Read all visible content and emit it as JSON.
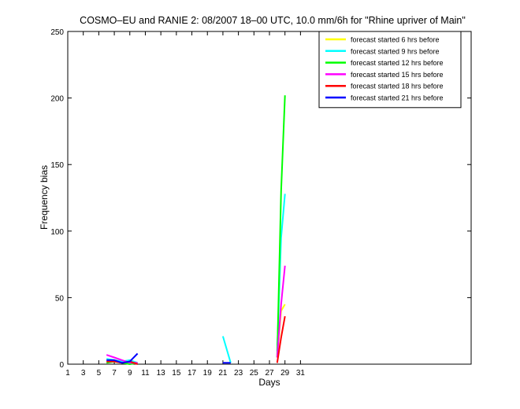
{
  "chart_data": {
    "type": "line",
    "title": "COSMO–EU and RANIE 2: 08/2007 18–00 UTC, 10.0 mm/6h for \"Rhine upriver of Main\"",
    "xlabel": "Days",
    "ylabel": "Frequency bias",
    "xlim": [
      1,
      53
    ],
    "ylim": [
      0,
      250
    ],
    "xticks": [
      1,
      3,
      5,
      7,
      9,
      11,
      13,
      15,
      17,
      19,
      21,
      23,
      25,
      27,
      29,
      31
    ],
    "yticks": [
      0,
      50,
      100,
      150,
      200,
      250
    ],
    "grid": false,
    "legend_position": "top-right",
    "series": [
      {
        "name": "forecast started 6 hrs before",
        "color": "#ffff00",
        "points": [
          [
            6,
            2
          ],
          [
            7,
            3
          ],
          [
            8,
            2
          ],
          [
            9,
            1
          ],
          [
            10,
            1
          ],
          [
            28,
            5
          ],
          [
            28.5,
            40
          ],
          [
            29,
            45
          ]
        ]
      },
      {
        "name": "forecast started 9 hrs before",
        "color": "#00ffff",
        "points": [
          [
            6,
            4
          ],
          [
            7,
            3
          ],
          [
            8,
            2
          ],
          [
            9,
            3
          ],
          [
            10,
            1
          ],
          [
            21,
            21
          ],
          [
            22,
            1
          ],
          [
            28,
            10
          ],
          [
            28.5,
            95
          ],
          [
            29,
            128
          ]
        ]
      },
      {
        "name": "forecast started 12 hrs before",
        "color": "#00ff00",
        "points": [
          [
            6,
            1
          ],
          [
            7,
            2
          ],
          [
            8,
            1
          ],
          [
            9,
            0
          ],
          [
            10,
            1
          ],
          [
            28,
            5
          ],
          [
            28.5,
            130
          ],
          [
            29,
            202
          ]
        ]
      },
      {
        "name": "forecast started 15 hrs before",
        "color": "#ff00ff",
        "points": [
          [
            6,
            7
          ],
          [
            7,
            5
          ],
          [
            8,
            3
          ],
          [
            9,
            1
          ],
          [
            10,
            1
          ],
          [
            15,
            3
          ],
          [
            28,
            5
          ],
          [
            28.5,
            45
          ],
          [
            29,
            74
          ]
        ]
      },
      {
        "name": "forecast started 18 hrs before",
        "color": "#ff0000",
        "points": [
          [
            6,
            2
          ],
          [
            7,
            2
          ],
          [
            8,
            1
          ],
          [
            9,
            2
          ],
          [
            10,
            0
          ],
          [
            28,
            1
          ],
          [
            28.5,
            20
          ],
          [
            29,
            36
          ]
        ]
      },
      {
        "name": "forecast started 21 hrs before",
        "color": "#0000ff",
        "points": [
          [
            6,
            3
          ],
          [
            7,
            3
          ],
          [
            8,
            1
          ],
          [
            9,
            2
          ],
          [
            10,
            8
          ],
          [
            21,
            1
          ],
          [
            22,
            1
          ]
        ]
      }
    ]
  }
}
